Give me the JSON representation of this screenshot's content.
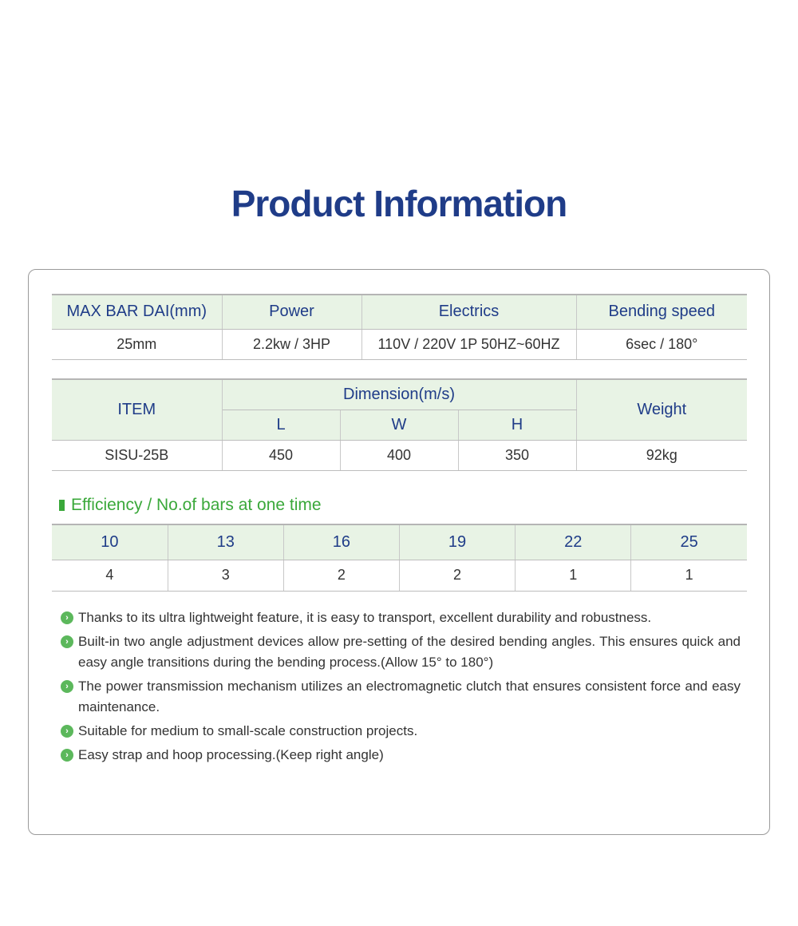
{
  "title": "Product Information",
  "spec_table": {
    "headers": [
      "MAX BAR DAI(mm)",
      "Power",
      "Electrics",
      "Bending speed"
    ],
    "row": [
      "25mm",
      "2.2kw / 3HP",
      "110V / 220V 1P 50HZ~60HZ",
      "6sec / 180°"
    ]
  },
  "dimension_table": {
    "item_header": "ITEM",
    "dimension_header": "Dimension(m/s)",
    "sub_headers": [
      "L",
      "W",
      "H"
    ],
    "weight_header": "Weight",
    "row": {
      "item": "SISU-25B",
      "L": "450",
      "W": "400",
      "H": "350",
      "weight": "92kg"
    }
  },
  "efficiency": {
    "heading": "Efficiency / No.of bars at one time",
    "diameters": [
      "10",
      "13",
      "16",
      "19",
      "22",
      "25"
    ],
    "bars": [
      "4",
      "3",
      "2",
      "2",
      "1",
      "1"
    ]
  },
  "features": [
    "Thanks to its ultra lightweight feature, it is easy to transport, excellent durability and robustness.",
    "Built-in two angle adjustment devices allow pre-setting of the desired bending angles. This ensures quick and easy angle transitions during the bending process.(Allow 15° to 180°)",
    "The power transmission mechanism utilizes an electromagnetic clutch that ensures consistent force and easy maintenance.",
    "Suitable for medium to small-scale construction projects.",
    "Easy strap and hoop processing.(Keep right angle)"
  ],
  "colors": {
    "title": "#1f3c88",
    "header_bg": "#e8f3e5",
    "accent_green": "#3aa83a"
  }
}
